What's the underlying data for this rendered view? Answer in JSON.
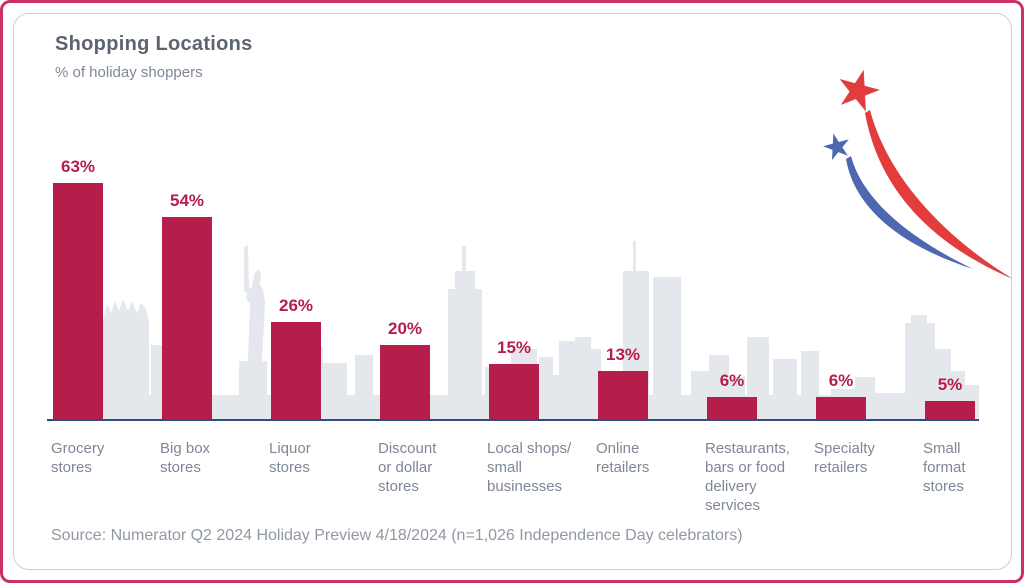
{
  "header": {
    "title": "Shopping Locations",
    "subtitle": "% of holiday shoppers"
  },
  "footer": {
    "source": "Source: Numerator Q2 2024 Holiday Preview 4/18/2024 (n=1,026 Independence Day celebrators)"
  },
  "colors": {
    "card_bg": "#ffffff",
    "frame_outer": "#cb3260",
    "frame_inner": "#cbd0d8",
    "bar": "#b51e4b",
    "value_label": "#b51e4b",
    "skyline": "#e4e7ec",
    "baseline": "#2f4d7e",
    "star_red": "#e23c3d",
    "trail_red": "#e23c3d",
    "star_blue": "#4e67b1",
    "trail_blue": "#4e67b1",
    "title": "#5c6470",
    "subtitle": "#7e8795",
    "category": "#7e8795",
    "source": "#9098a3"
  },
  "chart_data": {
    "type": "bar",
    "title": "Shopping Locations",
    "subtitle": "% of holiday shoppers",
    "unit": "%",
    "categories": [
      "Grocery stores",
      "Big box stores",
      "Liquor stores",
      "Discount or dollar stores",
      "Local shops/ small businesses",
      "Online retailers",
      "Restaurants, bars or food delivery services",
      "Specialty retailers",
      "Small format stores"
    ],
    "categories_display": [
      "Grocery\nstores",
      "Big box\nstores",
      "Liquor\nstores",
      "Discount\nor dollar\nstores",
      "Local shops/\nsmall\nbusinesses",
      "Online\nretailers",
      "Restaurants,\nbars or food\ndelivery\nservices",
      "Specialty\nretailers",
      "Small\nformat\nstores"
    ],
    "values": [
      63,
      54,
      26,
      20,
      15,
      13,
      6,
      6,
      5
    ],
    "data_labels": [
      "63%",
      "54%",
      "26%",
      "20%",
      "15%",
      "13%",
      "6%",
      "6%",
      "5%"
    ],
    "ylim": [
      0,
      70
    ],
    "grid": false,
    "legend": false,
    "source": "Source: Numerator Q2 2024 Holiday Preview 4/18/2024 (n=1,026 Independence Day celebrators)"
  }
}
